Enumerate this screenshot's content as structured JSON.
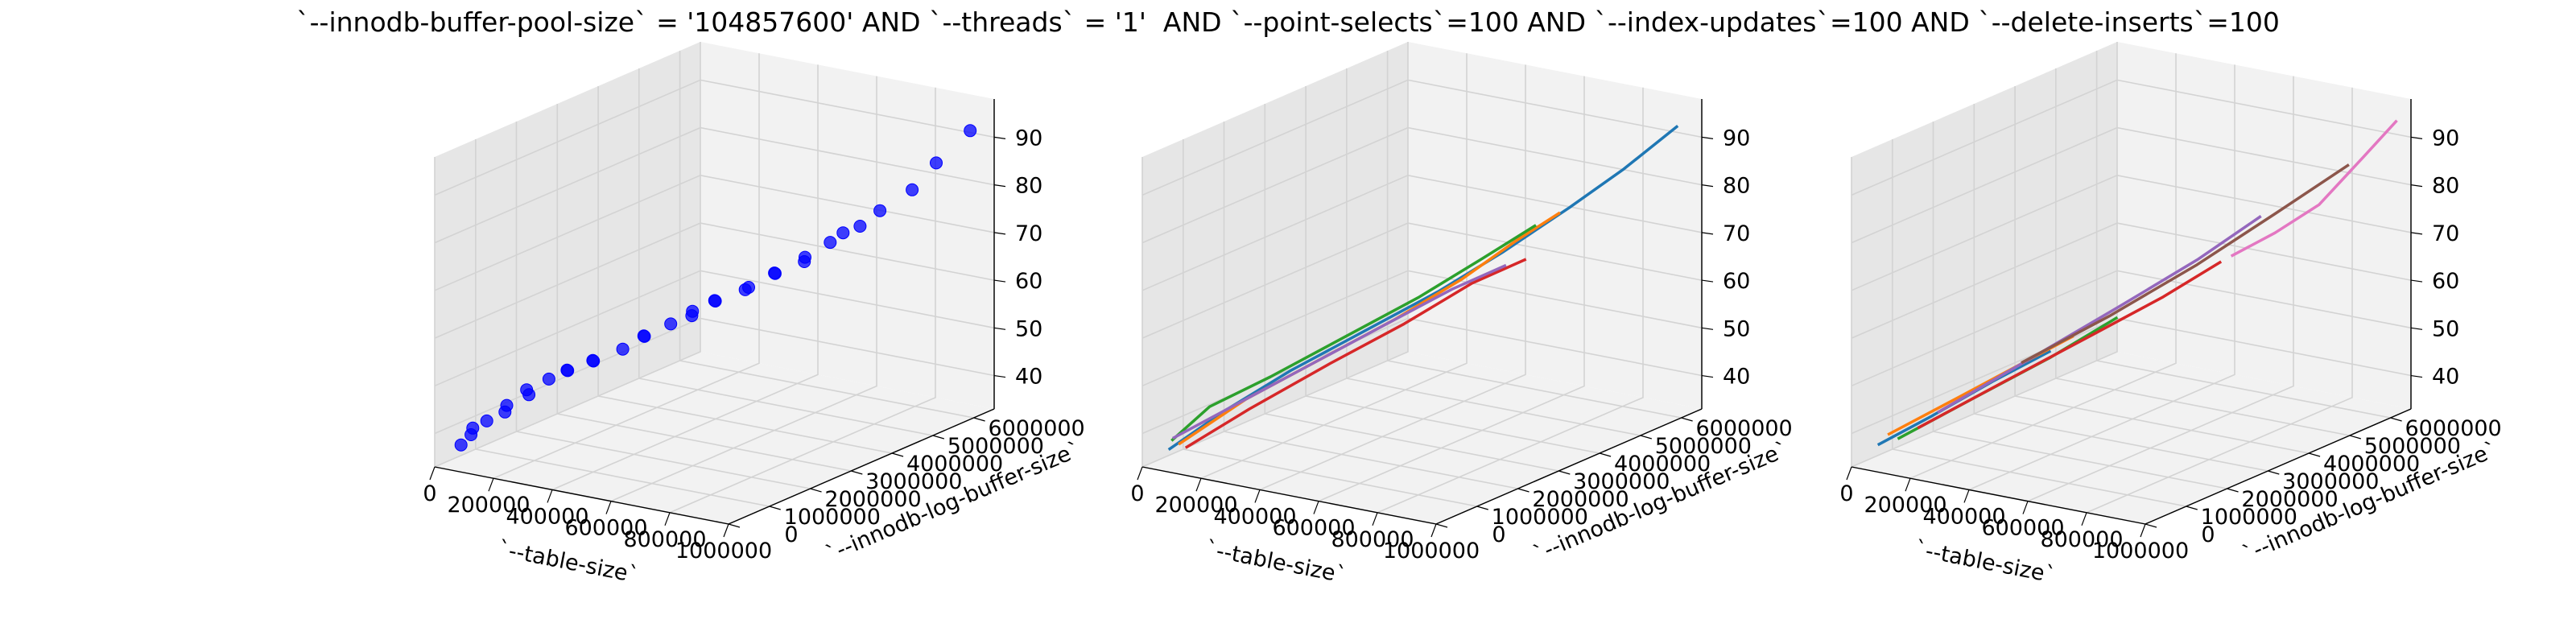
{
  "figure": {
    "title": "`--innodb-buffer-pool-size` = '104857600' AND `--threads` = '1'  AND `--point-selects`=100 AND `--index-updates`=100 AND `--delete-inserts`=100"
  },
  "chart_data": [
    {
      "type": "scatter3d",
      "title": "",
      "xlabel": "`--table-size`",
      "ylabel": "`--innodb-log-buffer-size`",
      "zlabel": "",
      "x_ticks": [
        "0",
        "200000",
        "400000",
        "600000",
        "800000",
        "1000000"
      ],
      "y_ticks": [
        "0",
        "1000000",
        "2000000",
        "3000000",
        "4000000",
        "5000000",
        "6000000"
      ],
      "z_ticks": [
        "40",
        "50",
        "60",
        "70",
        "80",
        "90"
      ],
      "xlim": [
        0,
        1000000
      ],
      "ylim": [
        0,
        6500000
      ],
      "zlim": [
        33,
        98
      ],
      "grid": true,
      "marker_color": "#0000ff",
      "points": [
        [
          20000,
          500000,
          36
        ],
        [
          40000,
          600000,
          38
        ],
        [
          60000,
          500000,
          40
        ],
        [
          80000,
          700000,
          41
        ],
        [
          100000,
          1000000,
          42
        ],
        [
          120000,
          900000,
          44
        ],
        [
          140000,
          1300000,
          45
        ],
        [
          160000,
          1100000,
          47
        ],
        [
          180000,
          1500000,
          48
        ],
        [
          200000,
          1800000,
          49
        ],
        [
          230000,
          1600000,
          50
        ],
        [
          260000,
          2000000,
          51
        ],
        [
          290000,
          1800000,
          52
        ],
        [
          320000,
          2300000,
          53
        ],
        [
          350000,
          2600000,
          55
        ],
        [
          380000,
          2400000,
          56
        ],
        [
          400000,
          2900000,
          57
        ],
        [
          430000,
          3200000,
          58
        ],
        [
          460000,
          3000000,
          60
        ],
        [
          480000,
          3400000,
          61
        ],
        [
          510000,
          3200000,
          62
        ],
        [
          540000,
          3800000,
          63
        ],
        [
          570000,
          3500000,
          64
        ],
        [
          600000,
          4000000,
          66
        ],
        [
          630000,
          3800000,
          67
        ],
        [
          660000,
          4300000,
          68
        ],
        [
          690000,
          4100000,
          70
        ],
        [
          720000,
          4500000,
          72
        ],
        [
          750000,
          4600000,
          74
        ],
        [
          780000,
          4800000,
          75
        ],
        [
          820000,
          5000000,
          78
        ],
        [
          860000,
          5500000,
          81
        ],
        [
          900000,
          5800000,
          86
        ],
        [
          960000,
          6200000,
          92
        ]
      ]
    },
    {
      "type": "line3d",
      "title": "",
      "xlabel": "`--table-size`",
      "ylabel": "`--innodb-log-buffer-size`",
      "zlabel": "",
      "x_ticks": [
        "0",
        "200000",
        "400000",
        "600000",
        "800000",
        "1000000"
      ],
      "y_ticks": [
        "0",
        "1000000",
        "2000000",
        "3000000",
        "4000000",
        "5000000",
        "6000000"
      ],
      "z_ticks": [
        "40",
        "50",
        "60",
        "70",
        "80",
        "90"
      ],
      "xlim": [
        0,
        1000000
      ],
      "ylim": [
        0,
        6500000
      ],
      "zlim": [
        33,
        98
      ],
      "grid": true,
      "series": [
        {
          "color": "#1f77b4",
          "points": [
            [
              20000,
              500000,
              35
            ],
            [
              120000,
              1200000,
              42
            ],
            [
              240000,
              1900000,
              49
            ],
            [
              380000,
              2700000,
              56
            ],
            [
              520000,
              3500000,
              63
            ],
            [
              640000,
              4200000,
              70
            ],
            [
              760000,
              5000000,
              78
            ],
            [
              860000,
              5600000,
              85
            ],
            [
              960000,
              6200000,
              93
            ]
          ]
        },
        {
          "color": "#ff7f0e",
          "points": [
            [
              40000,
              600000,
              36
            ],
            [
              160000,
              1400000,
              44
            ],
            [
              300000,
              2200000,
              51
            ],
            [
              440000,
              3000000,
              58
            ],
            [
              560000,
              3800000,
              65
            ],
            [
              660000,
              4400000,
              72
            ],
            [
              740000,
              4900000,
              77
            ]
          ]
        },
        {
          "color": "#2ca02c",
          "points": [
            [
              30000,
              500000,
              37
            ],
            [
              90000,
              1000000,
              43
            ],
            [
              200000,
              1700000,
              48
            ],
            [
              340000,
              2500000,
              55
            ],
            [
              480000,
              3300000,
              62
            ],
            [
              600000,
              4000000,
              69
            ],
            [
              700000,
              4600000,
              75
            ]
          ]
        },
        {
          "color": "#d62728",
          "points": [
            [
              50000,
              700000,
              35
            ],
            [
              170000,
              1400000,
              42
            ],
            [
              320000,
              2300000,
              50
            ],
            [
              460000,
              3100000,
              57
            ],
            [
              580000,
              3900000,
              64
            ],
            [
              680000,
              4500000,
              68
            ]
          ]
        },
        {
          "color": "#9467bd",
          "points": [
            [
              20000,
              600000,
              37
            ],
            [
              140000,
              1300000,
              43
            ],
            [
              280000,
              2100000,
              50
            ],
            [
              420000,
              2900000,
              57
            ],
            [
              540000,
              3700000,
              63
            ],
            [
              640000,
              4300000,
              67
            ]
          ]
        }
      ]
    },
    {
      "type": "line3d",
      "title": "",
      "xlabel": "`--table-size`",
      "ylabel": "`--innodb-log-buffer-size`",
      "zlabel": "",
      "x_ticks": [
        "0",
        "200000",
        "400000",
        "600000",
        "800000",
        "1000000"
      ],
      "y_ticks": [
        "0",
        "1000000",
        "2000000",
        "3000000",
        "4000000",
        "5000000",
        "6000000"
      ],
      "z_ticks": [
        "40",
        "50",
        "60",
        "70",
        "80",
        "90"
      ],
      "xlim": [
        0,
        1000000
      ],
      "ylim": [
        0,
        6500000
      ],
      "zlim": [
        33,
        98
      ],
      "grid": true,
      "series": [
        {
          "color": "#1f77b4",
          "points": [
            [
              20000,
              500000,
              36
            ],
            [
              120000,
              1100000,
              41
            ],
            [
              230000,
              1800000,
              47
            ],
            [
              330000,
              2500000,
              52
            ]
          ]
        },
        {
          "color": "#ff7f0e",
          "points": [
            [
              40000,
              600000,
              38
            ],
            [
              160000,
              1400000,
              44
            ],
            [
              280000,
              2100000,
              50
            ],
            [
              380000,
              2700000,
              55
            ]
          ]
        },
        {
          "color": "#2ca02c",
          "points": [
            [
              60000,
              700000,
              37
            ],
            [
              200000,
              1500000,
              44
            ],
            [
              340000,
              2400000,
              51
            ],
            [
              460000,
              3200000,
              58
            ]
          ]
        },
        {
          "color": "#d62728",
          "points": [
            [
              100000,
              900000,
              39
            ],
            [
              260000,
              1800000,
              47
            ],
            [
              420000,
              2800000,
              55
            ],
            [
              560000,
              3600000,
              62
            ],
            [
              660000,
              4300000,
              68
            ]
          ]
        },
        {
          "color": "#9467bd",
          "points": [
            [
              140000,
              1100000,
              42
            ],
            [
              320000,
              2200000,
              52
            ],
            [
              480000,
              3200000,
              61
            ],
            [
              620000,
              4000000,
              69
            ],
            [
              740000,
              4700000,
              77
            ]
          ]
        },
        {
          "color": "#8c564b",
          "points": [
            [
              300000,
              2000000,
              51
            ],
            [
              460000,
              3000000,
              59
            ],
            [
              620000,
              4000000,
              68
            ],
            [
              760000,
              4900000,
              77
            ],
            [
              900000,
              5700000,
              86
            ]
          ]
        },
        {
          "color": "#e377c2",
          "points": [
            [
              680000,
              4400000,
              69
            ],
            [
              760000,
              4900000,
              73
            ],
            [
              840000,
              5400000,
              78
            ],
            [
              920000,
              5900000,
              87
            ],
            [
              980000,
              6300000,
              94
            ]
          ]
        }
      ]
    }
  ]
}
